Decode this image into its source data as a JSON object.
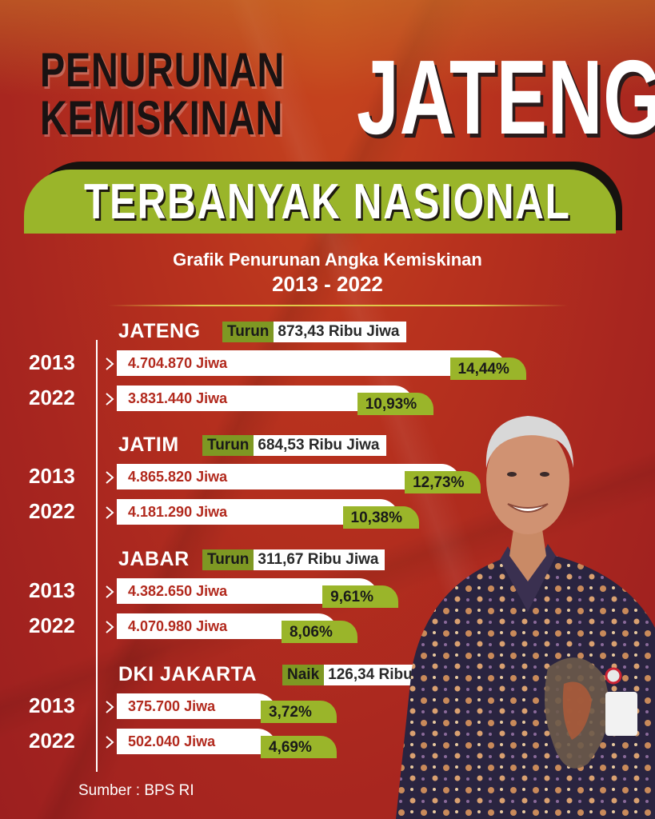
{
  "title": {
    "line1": "PENURUNAN",
    "line2": "KEMISKINAN",
    "highlight": "JATENG",
    "banner": "TERBANYAK NASIONAL"
  },
  "subtitle": {
    "line1": "Grafik Penurunan Angka Kemiskinan",
    "line2": "2013 - 2022"
  },
  "source": "Sumber : BPS RI",
  "colors": {
    "background": "#b8321e",
    "accent_green": "#9ab52a",
    "dark_green": "#7e9823",
    "label_red": "#b22a1e"
  },
  "chart_data": {
    "type": "bar",
    "title": "Grafik Penurunan Angka Kemiskinan",
    "subtitle": "2013 - 2022",
    "regions": [
      {
        "name": "JATENG",
        "change_tag": "Turun",
        "change_text": "873,43 Ribu Jiwa",
        "rows": [
          {
            "year": "2013",
            "people_label": "4.704.870 Jiwa",
            "people": 4704870,
            "percent_label": "14,44%",
            "percent": 14.44
          },
          {
            "year": "2022",
            "people_label": "3.831.440  Jiwa",
            "people": 3831440,
            "percent_label": "10,93%",
            "percent": 10.93
          }
        ]
      },
      {
        "name": "JATIM",
        "change_tag": "Turun",
        "change_text": "684,53 Ribu Jiwa",
        "rows": [
          {
            "year": "2013",
            "people_label": "4.865.820 Jiwa",
            "people": 4865820,
            "percent_label": "12,73%",
            "percent": 12.73
          },
          {
            "year": "2022",
            "people_label": "4.181.290 Jiwa",
            "people": 4181290,
            "percent_label": "10,38%",
            "percent": 10.38
          }
        ]
      },
      {
        "name": "JABAR",
        "change_tag": "Turun",
        "change_text": "311,67 Ribu Jiwa",
        "rows": [
          {
            "year": "2013",
            "people_label": "4.382.650 Jiwa",
            "people": 4382650,
            "percent_label": "9,61%",
            "percent": 9.61
          },
          {
            "year": "2022",
            "people_label": "4.070.980 Jiwa",
            "people": 4070980,
            "percent_label": "8,06%",
            "percent": 8.06
          }
        ]
      },
      {
        "name": "DKI JAKARTA",
        "change_tag": "Naik",
        "change_text": "126,34 Ribu Jiwa",
        "rows": [
          {
            "year": "2013",
            "people_label": "375.700 Jiwa",
            "people": 375700,
            "percent_label": "3,72%",
            "percent": 3.72
          },
          {
            "year": "2022",
            "people_label": "502.040 Jiwa",
            "people": 502040,
            "percent_label": "4,69%",
            "percent": 4.69
          }
        ]
      }
    ]
  }
}
